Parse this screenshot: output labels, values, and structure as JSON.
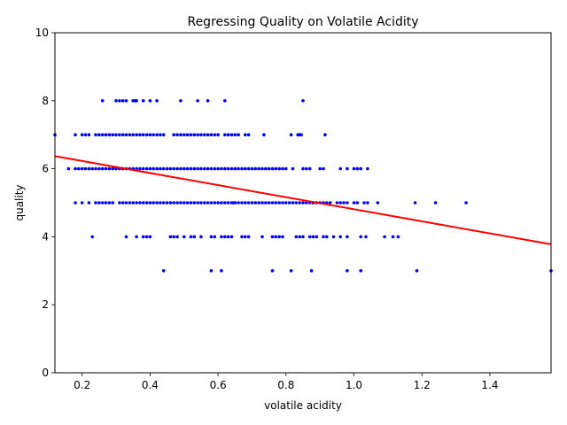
{
  "chart_data": {
    "type": "scatter",
    "title": "Regressing Quality on Volatile Acidity",
    "xlabel": "volatile acidity",
    "ylabel": "quality",
    "xlim": [
      0.12,
      1.58
    ],
    "ylim": [
      0,
      10
    ],
    "xticks": [
      "0.2",
      "0.4",
      "0.6",
      "0.8",
      "1.0",
      "1.2",
      "1.4"
    ],
    "xtick_values": [
      0.2,
      0.4,
      0.6,
      0.8,
      1.0,
      1.2,
      1.4
    ],
    "yticks": [
      "0",
      "2",
      "4",
      "6",
      "8",
      "10"
    ],
    "ytick_values": [
      0,
      2,
      4,
      6,
      8,
      10
    ],
    "grid": false,
    "point_color": "#0000ff",
    "line_color": "#ff0000",
    "regression": {
      "x": [
        0.12,
        1.58
      ],
      "y": [
        6.37,
        3.78
      ]
    },
    "points": {
      "3": [
        0.44,
        0.58,
        0.61,
        0.76,
        0.815,
        0.875,
        0.98,
        1.02,
        1.185,
        1.58
      ],
      "4": [
        0.23,
        0.33,
        0.36,
        0.38,
        0.39,
        0.4,
        0.46,
        0.47,
        0.48,
        0.5,
        0.52,
        0.53,
        0.55,
        0.58,
        0.59,
        0.61,
        0.62,
        0.63,
        0.64,
        0.67,
        0.68,
        0.69,
        0.73,
        0.76,
        0.77,
        0.78,
        0.79,
        0.83,
        0.84,
        0.85,
        0.87,
        0.88,
        0.89,
        0.91,
        0.92,
        0.94,
        0.96,
        0.98,
        1.02,
        1.035,
        1.09,
        1.115,
        1.13
      ],
      "5": [
        0.18,
        0.2,
        0.22,
        0.24,
        0.25,
        0.26,
        0.27,
        0.28,
        0.29,
        0.31,
        0.32,
        0.33,
        0.34,
        0.35,
        0.36,
        0.37,
        0.38,
        0.39,
        0.4,
        0.41,
        0.42,
        0.43,
        0.44,
        0.45,
        0.46,
        0.47,
        0.48,
        0.49,
        0.5,
        0.51,
        0.52,
        0.53,
        0.54,
        0.55,
        0.56,
        0.57,
        0.58,
        0.59,
        0.6,
        0.61,
        0.62,
        0.63,
        0.64,
        0.645,
        0.65,
        0.66,
        0.67,
        0.68,
        0.69,
        0.7,
        0.71,
        0.72,
        0.73,
        0.74,
        0.75,
        0.76,
        0.77,
        0.78,
        0.79,
        0.8,
        0.81,
        0.82,
        0.83,
        0.84,
        0.85,
        0.86,
        0.87,
        0.88,
        0.89,
        0.9,
        0.91,
        0.92,
        0.93,
        0.95,
        0.96,
        0.97,
        0.98,
        1.0,
        1.01,
        1.03,
        1.04,
        1.07,
        1.18,
        1.24,
        1.33
      ],
      "6": [
        0.16,
        0.18,
        0.19,
        0.2,
        0.21,
        0.22,
        0.23,
        0.24,
        0.25,
        0.26,
        0.27,
        0.28,
        0.29,
        0.3,
        0.31,
        0.32,
        0.33,
        0.34,
        0.35,
        0.36,
        0.37,
        0.38,
        0.39,
        0.4,
        0.41,
        0.42,
        0.43,
        0.44,
        0.45,
        0.46,
        0.47,
        0.48,
        0.49,
        0.5,
        0.51,
        0.52,
        0.53,
        0.54,
        0.55,
        0.56,
        0.57,
        0.58,
        0.59,
        0.6,
        0.61,
        0.62,
        0.63,
        0.64,
        0.65,
        0.66,
        0.67,
        0.68,
        0.69,
        0.7,
        0.71,
        0.72,
        0.73,
        0.74,
        0.75,
        0.76,
        0.77,
        0.78,
        0.79,
        0.8,
        0.82,
        0.85,
        0.86,
        0.87,
        0.9,
        0.91,
        0.96,
        0.98,
        1.0,
        1.01,
        1.02,
        1.04
      ],
      "7": [
        0.12,
        0.18,
        0.2,
        0.21,
        0.22,
        0.24,
        0.25,
        0.26,
        0.27,
        0.28,
        0.29,
        0.3,
        0.31,
        0.32,
        0.33,
        0.34,
        0.35,
        0.36,
        0.37,
        0.38,
        0.39,
        0.4,
        0.41,
        0.42,
        0.43,
        0.44,
        0.47,
        0.48,
        0.49,
        0.5,
        0.51,
        0.52,
        0.53,
        0.54,
        0.55,
        0.56,
        0.57,
        0.58,
        0.59,
        0.6,
        0.62,
        0.63,
        0.64,
        0.65,
        0.66,
        0.68,
        0.69,
        0.735,
        0.815,
        0.835,
        0.84,
        0.845,
        0.915
      ],
      "8": [
        0.26,
        0.3,
        0.31,
        0.32,
        0.33,
        0.35,
        0.355,
        0.36,
        0.38,
        0.4,
        0.42,
        0.49,
        0.54,
        0.57,
        0.62,
        0.85
      ]
    }
  }
}
